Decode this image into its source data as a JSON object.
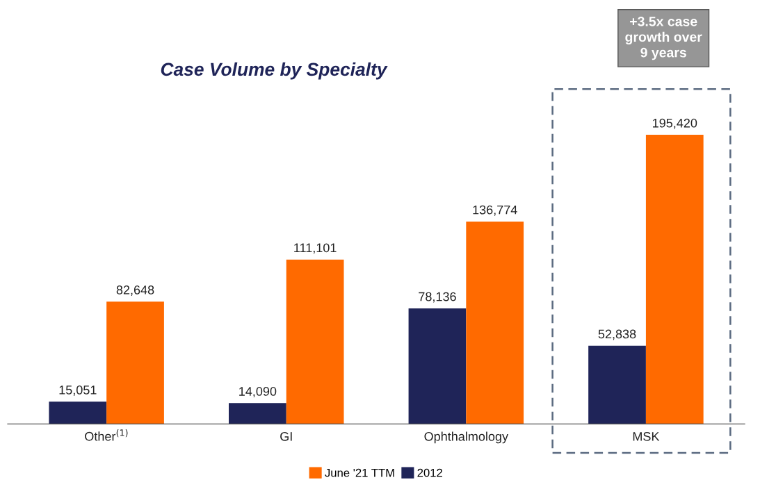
{
  "chart_data": {
    "type": "bar",
    "title": "Case Volume by Specialty",
    "categories": [
      "Other$^{(1)}$",
      "GI",
      "Ophthalmology",
      "MSK"
    ],
    "series": [
      {
        "name": "2012",
        "color": "#1f2458",
        "values": [
          15051,
          14090,
          78136,
          52838
        ],
        "value_labels": [
          "15,051",
          "14,090",
          "78,136",
          "52,838"
        ]
      },
      {
        "name": "June '21 TTM",
        "color": "#ff6a00",
        "values": [
          82648,
          111101,
          136774,
          195420
        ],
        "value_labels": [
          "82,648",
          "111,101",
          "136,774",
          "195,420"
        ]
      }
    ],
    "grid": false,
    "legend": "bottom",
    "annotations": [
      "+3.5x case\ngrowth over\n9 years"
    ]
  }
}
